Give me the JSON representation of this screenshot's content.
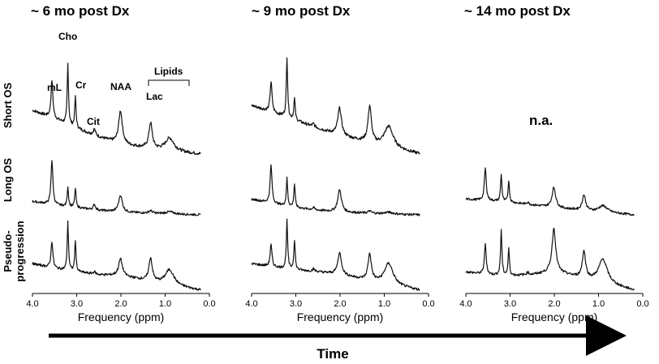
{
  "chart_data": {
    "type": "line",
    "xlabel": "Frequency (ppm)",
    "xlim": [
      4.0,
      0.0
    ],
    "x_reversed": true,
    "x_ticks": [
      "4.0",
      "3.0",
      "2.0",
      "1.0",
      "0.0"
    ],
    "time_label": "Time",
    "columns": [
      "~ 6 mo post Dx",
      "~ 9 mo post Dx",
      "~ 14 mo post Dx"
    ],
    "rows": [
      "Short OS",
      "Long OS",
      "Pseudo-\nprogression"
    ],
    "rows_display": [
      "Short OS",
      "Long OS",
      "Pseudo-",
      "progression"
    ],
    "peak_labels": [
      {
        "text": "Cho",
        "ppm": 3.2
      },
      {
        "text": "mL",
        "ppm": 3.56
      },
      {
        "text": "Cr",
        "ppm": 3.03
      },
      {
        "text": "Cit",
        "ppm": 2.6
      },
      {
        "text": "NAA",
        "ppm": 2.01
      },
      {
        "text": "Lipids",
        "ppm": 0.9
      },
      {
        "text": "Lac",
        "ppm": 1.33
      }
    ],
    "not_available": "n.a.",
    "peak_ppm": {
      "mL": 3.56,
      "Cho": 3.2,
      "Cr": 3.03,
      "Cit": 2.6,
      "NAA": 2.01,
      "Lac": 1.33,
      "Lip": 0.9
    },
    "spectra": [
      {
        "column": 0,
        "row": 0,
        "baseline": [
          0.72,
          0.58,
          0.42,
          0.28,
          0.16,
          0.05,
          0.0
        ],
        "peaks": {
          "mL": 0.62,
          "Cho": 1.0,
          "Cr": 0.5,
          "Cit": 0.1,
          "NAA": 0.55,
          "Lac": 0.42,
          "Lip": 0.22
        }
      },
      {
        "column": 1,
        "row": 0,
        "baseline": [
          0.8,
          0.68,
          0.55,
          0.42,
          0.3,
          0.12,
          0.0
        ],
        "peaks": {
          "mL": 0.5,
          "Cho": 1.0,
          "Cr": 0.35,
          "Cit": 0.05,
          "NAA": 0.45,
          "Lac": 0.6,
          "Lip": 0.35
        }
      },
      {
        "column": 0,
        "row": 1,
        "baseline": [
          0.3,
          0.22,
          0.16,
          0.1,
          0.06,
          0.02,
          0.0
        ],
        "peaks": {
          "mL": 1.0,
          "Cho": 0.45,
          "Cr": 0.42,
          "Cit": 0.12,
          "NAA": 0.38,
          "Lac": 0.06,
          "Lip": 0.05
        }
      },
      {
        "column": 1,
        "row": 1,
        "baseline": [
          0.35,
          0.25,
          0.16,
          0.1,
          0.06,
          0.02,
          0.0
        ],
        "peaks": {
          "mL": 0.85,
          "Cho": 0.62,
          "Cr": 0.52,
          "Cit": 0.05,
          "NAA": 0.5,
          "Lac": 0.05,
          "Lip": 0.04
        }
      },
      {
        "column": 2,
        "row": 1,
        "baseline": [
          0.35,
          0.32,
          0.28,
          0.22,
          0.16,
          0.06,
          0.0
        ],
        "peaks": {
          "mL": 0.72,
          "Cho": 0.62,
          "Cr": 0.48,
          "Cit": 0.05,
          "NAA": 0.45,
          "Lac": 0.35,
          "Lip": 0.15
        }
      },
      {
        "column": 0,
        "row": 2,
        "baseline": [
          0.55,
          0.45,
          0.38,
          0.32,
          0.3,
          0.12,
          0.0
        ],
        "peaks": {
          "mL": 0.55,
          "Cho": 1.0,
          "Cr": 0.62,
          "Cit": 0.05,
          "NAA": 0.35,
          "Lac": 0.48,
          "Lip": 0.32
        }
      },
      {
        "column": 1,
        "row": 2,
        "baseline": [
          0.55,
          0.48,
          0.42,
          0.38,
          0.32,
          0.12,
          0.0
        ],
        "peaks": {
          "mL": 0.45,
          "Cho": 1.0,
          "Cr": 0.62,
          "Cit": 0.05,
          "NAA": 0.45,
          "Lac": 0.55,
          "Lip": 0.45
        }
      },
      {
        "column": 2,
        "row": 2,
        "baseline": [
          0.38,
          0.32,
          0.3,
          0.32,
          0.38,
          0.16,
          0.0
        ],
        "peaks": {
          "mL": 0.62,
          "Cho": 0.95,
          "Cr": 0.55,
          "Cit": 0.05,
          "NAA": 0.9,
          "Lac": 0.55,
          "Lip": 0.5
        }
      }
    ]
  }
}
